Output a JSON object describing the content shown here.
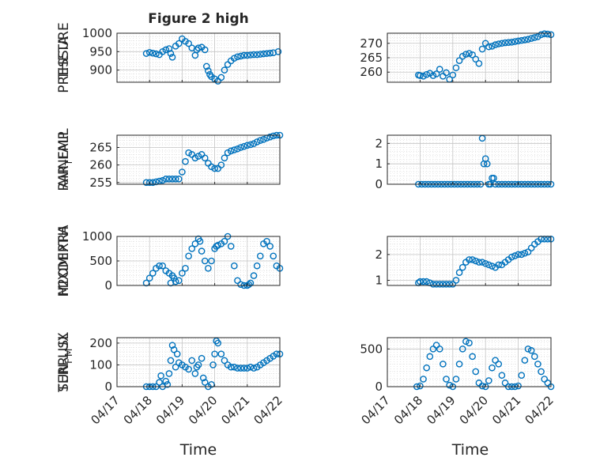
{
  "figure_title": "Figure 2 high",
  "x_tick_labels": [
    "04/17",
    "04/18",
    "04/19",
    "04/20",
    "04/21",
    "04/22"
  ],
  "xlabel": "Time",
  "marker_color": "#0072BD",
  "chart_data": [
    {
      "type": "scatter",
      "ylabel": "PRESSURE",
      "title": "Figure 2 high",
      "yticks": [
        900,
        950,
        1000
      ],
      "ylim": [
        867,
        1000
      ],
      "xlim": [
        0,
        5
      ],
      "xlabel": "",
      "x": [
        0.9,
        1.0,
        1.1,
        1.2,
        1.3,
        1.4,
        1.5,
        1.6,
        1.65,
        1.7,
        1.8,
        1.9,
        2.0,
        2.1,
        2.2,
        2.3,
        2.4,
        2.45,
        2.5,
        2.6,
        2.7,
        2.75,
        2.8,
        2.85,
        2.9,
        3.0,
        3.1,
        3.2,
        3.3,
        3.4,
        3.5,
        3.6,
        3.7,
        3.8,
        3.9,
        4.0,
        4.1,
        4.2,
        4.3,
        4.4,
        4.5,
        4.6,
        4.7,
        4.8,
        4.95
      ],
      "y": [
        945,
        948,
        946,
        944,
        942,
        950,
        955,
        958,
        945,
        935,
        965,
        972,
        985,
        978,
        972,
        960,
        940,
        955,
        960,
        962,
        955,
        910,
        898,
        888,
        882,
        876,
        870,
        880,
        900,
        915,
        925,
        932,
        936,
        938,
        940,
        940,
        941,
        942,
        942,
        943,
        944,
        945,
        946,
        947,
        950
      ]
    },
    {
      "type": "scatter",
      "ylabel": "THETA",
      "yticks": [
        260,
        265,
        270
      ],
      "ylim": [
        256.5,
        273.5
      ],
      "xlim": [
        0,
        5
      ],
      "x": [
        0.95,
        1.0,
        1.1,
        1.2,
        1.3,
        1.4,
        1.5,
        1.6,
        1.7,
        1.8,
        1.9,
        2.0,
        2.1,
        2.2,
        2.3,
        2.4,
        2.5,
        2.6,
        2.7,
        2.8,
        2.9,
        3.0,
        3.1,
        3.2,
        3.3,
        3.4,
        3.5,
        3.6,
        3.7,
        3.8,
        3.9,
        4.0,
        4.1,
        4.2,
        4.3,
        4.4,
        4.5,
        4.6,
        4.7,
        4.8,
        4.9,
        5.0
      ],
      "y": [
        259,
        258.8,
        258.6,
        259.2,
        259.6,
        258.8,
        259.4,
        261.0,
        258.6,
        259.8,
        257.5,
        259.0,
        261.5,
        264.0,
        265.5,
        266.2,
        266.5,
        266.0,
        264.5,
        263.0,
        268.0,
        270.0,
        268.8,
        269.0,
        269.5,
        269.8,
        270.0,
        270.2,
        270.3,
        270.4,
        270.6,
        270.8,
        271.0,
        271.2,
        271.4,
        271.7,
        272.0,
        272.3,
        273.0,
        273.3,
        273.2,
        273.0
      ]
    },
    {
      "type": "scatter",
      "ylabel": "AIR_TEMP",
      "ylabel_main": "AIR",
      "ylabel_sub": "T",
      "ylabel_rest": "EMP",
      "yticks": [
        255,
        260,
        265
      ],
      "ylim": [
        254.5,
        268.5
      ],
      "xlim": [
        0,
        5
      ],
      "x": [
        0.9,
        1.0,
        1.1,
        1.2,
        1.3,
        1.4,
        1.5,
        1.6,
        1.7,
        1.8,
        1.9,
        2.0,
        2.1,
        2.2,
        2.3,
        2.4,
        2.5,
        2.6,
        2.7,
        2.8,
        2.9,
        3.0,
        3.1,
        3.2,
        3.3,
        3.4,
        3.5,
        3.6,
        3.7,
        3.8,
        3.9,
        4.0,
        4.1,
        4.2,
        4.3,
        4.4,
        4.5,
        4.6,
        4.7,
        4.8,
        4.9,
        5.0
      ],
      "y": [
        255,
        255,
        255,
        255.2,
        255.4,
        255.6,
        256,
        256,
        256,
        256,
        256,
        258,
        261,
        263.5,
        263,
        262,
        262.5,
        263,
        262,
        260.5,
        259.5,
        259,
        259,
        260,
        262,
        263.5,
        264.0,
        264.3,
        264.6,
        265.0,
        265.3,
        265.6,
        265.8,
        266.1,
        266.6,
        267.0,
        267.3,
        267.7,
        268.0,
        268.3,
        268.5,
        268.5
      ]
    },
    {
      "type": "scatter",
      "ylabel": "RAINFALL",
      "yticks": [
        0,
        1,
        2
      ],
      "ylim": [
        0,
        2.4
      ],
      "xlim": [
        0,
        5
      ],
      "x": [
        0.95,
        1.05,
        1.15,
        1.25,
        1.35,
        1.45,
        1.55,
        1.65,
        1.75,
        1.85,
        1.95,
        2.05,
        2.15,
        2.25,
        2.35,
        2.45,
        2.55,
        2.65,
        2.75,
        2.85,
        2.9,
        2.95,
        3.0,
        3.05,
        3.1,
        3.15,
        3.2,
        3.25,
        3.3,
        3.4,
        3.5,
        3.6,
        3.7,
        3.8,
        3.9,
        4.0,
        4.1,
        4.2,
        4.3,
        4.4,
        4.5,
        4.6,
        4.7,
        4.8,
        4.9,
        5.0
      ],
      "y": [
        0,
        0,
        0,
        0,
        0,
        0,
        0,
        0,
        0,
        0,
        0,
        0,
        0,
        0,
        0,
        0,
        0,
        0,
        0,
        0,
        2.25,
        1.0,
        1.25,
        1.0,
        0,
        0,
        0.3,
        0.3,
        0,
        0,
        0,
        0,
        0,
        0,
        0,
        0,
        0,
        0,
        0,
        0,
        0,
        0,
        0,
        0,
        0,
        0
      ]
    },
    {
      "type": "scatter",
      "ylabel": "MIXDEPTH",
      "yticks": [
        0,
        500,
        1000
      ],
      "ylim": [
        0,
        1000
      ],
      "xlim": [
        0,
        5
      ],
      "x": [
        0.9,
        1.0,
        1.1,
        1.2,
        1.3,
        1.4,
        1.5,
        1.6,
        1.65,
        1.7,
        1.75,
        1.8,
        1.9,
        2.0,
        2.1,
        2.2,
        2.3,
        2.4,
        2.5,
        2.55,
        2.6,
        2.7,
        2.8,
        2.9,
        3.0,
        3.05,
        3.1,
        3.2,
        3.3,
        3.4,
        3.5,
        3.6,
        3.7,
        3.8,
        3.9,
        4.0,
        4.05,
        4.1,
        4.2,
        4.3,
        4.4,
        4.5,
        4.6,
        4.7,
        4.8,
        4.9,
        5.0
      ],
      "y": [
        50,
        150,
        250,
        350,
        400,
        400,
        300,
        250,
        50,
        200,
        150,
        80,
        100,
        250,
        350,
        600,
        750,
        850,
        950,
        900,
        700,
        500,
        350,
        500,
        750,
        800,
        820,
        850,
        900,
        1000,
        800,
        400,
        100,
        20,
        0,
        0,
        20,
        50,
        200,
        400,
        600,
        850,
        900,
        800,
        600,
        400,
        350
      ]
    },
    {
      "type": "scatter",
      "ylabel": "H2OMIXRA",
      "yticks": [
        1,
        2
      ],
      "ylim": [
        0.8,
        2.7
      ],
      "xlim": [
        0,
        5
      ],
      "x": [
        0.95,
        1.0,
        1.1,
        1.2,
        1.3,
        1.4,
        1.5,
        1.6,
        1.7,
        1.8,
        1.9,
        2.0,
        2.1,
        2.2,
        2.3,
        2.4,
        2.5,
        2.6,
        2.7,
        2.8,
        2.9,
        3.0,
        3.1,
        3.2,
        3.3,
        3.4,
        3.5,
        3.6,
        3.7,
        3.8,
        3.9,
        4.0,
        4.1,
        4.2,
        4.3,
        4.4,
        4.5,
        4.6,
        4.7,
        4.8,
        4.9,
        5.0
      ],
      "y": [
        0.9,
        0.95,
        0.95,
        0.95,
        0.9,
        0.85,
        0.85,
        0.85,
        0.85,
        0.85,
        0.85,
        0.85,
        1.0,
        1.3,
        1.5,
        1.7,
        1.8,
        1.8,
        1.75,
        1.7,
        1.7,
        1.65,
        1.6,
        1.55,
        1.5,
        1.6,
        1.6,
        1.7,
        1.8,
        1.9,
        1.95,
        2.0,
        2.0,
        2.05,
        2.1,
        2.25,
        2.4,
        2.5,
        2.6,
        2.6,
        2.6,
        2.6
      ]
    },
    {
      "type": "scatter",
      "ylabel": "TERR_MSL",
      "ylabel_main": "TERR",
      "ylabel_sub": "M",
      "ylabel_rest": "SL",
      "yticks": [
        0,
        100,
        200
      ],
      "ylim": [
        0,
        225
      ],
      "xlim": [
        0,
        5
      ],
      "x": [
        0.9,
        1.0,
        1.1,
        1.2,
        1.3,
        1.35,
        1.4,
        1.5,
        1.55,
        1.6,
        1.65,
        1.7,
        1.75,
        1.8,
        1.85,
        1.9,
        2.0,
        2.1,
        2.2,
        2.3,
        2.4,
        2.45,
        2.5,
        2.6,
        2.65,
        2.7,
        2.8,
        2.9,
        2.95,
        3.0,
        3.05,
        3.1,
        3.2,
        3.3,
        3.4,
        3.5,
        3.6,
        3.7,
        3.8,
        3.9,
        4.0,
        4.1,
        4.2,
        4.3,
        4.4,
        4.5,
        4.6,
        4.7,
        4.8,
        4.9,
        5.0
      ],
      "y": [
        0,
        0,
        0,
        0,
        20,
        50,
        0,
        25,
        10,
        60,
        120,
        190,
        170,
        90,
        150,
        110,
        100,
        90,
        80,
        120,
        60,
        90,
        100,
        130,
        40,
        20,
        0,
        10,
        100,
        150,
        210,
        200,
        150,
        120,
        100,
        90,
        90,
        85,
        85,
        85,
        85,
        90,
        85,
        90,
        100,
        110,
        120,
        130,
        140,
        150,
        150
      ]
    },
    {
      "type": "scatter",
      "ylabel": "SUN_FLUX",
      "ylabel_main": "SUN",
      "ylabel_sub": "F",
      "ylabel_rest": "LUX",
      "yticks": [
        0,
        500
      ],
      "ylim": [
        0,
        650
      ],
      "xlim": [
        0,
        5
      ],
      "x": [
        0.9,
        1.0,
        1.1,
        1.2,
        1.3,
        1.4,
        1.5,
        1.6,
        1.7,
        1.8,
        1.9,
        2.0,
        2.1,
        2.2,
        2.3,
        2.4,
        2.5,
        2.6,
        2.7,
        2.8,
        2.9,
        3.0,
        3.1,
        3.2,
        3.3,
        3.4,
        3.5,
        3.6,
        3.7,
        3.8,
        3.9,
        4.0,
        4.1,
        4.2,
        4.3,
        4.4,
        4.5,
        4.6,
        4.7,
        4.8,
        4.9,
        5.0
      ],
      "y": [
        0,
        10,
        100,
        250,
        400,
        500,
        550,
        500,
        300,
        100,
        20,
        0,
        100,
        300,
        500,
        600,
        580,
        400,
        200,
        50,
        10,
        0,
        80,
        250,
        350,
        300,
        150,
        50,
        0,
        0,
        0,
        10,
        150,
        350,
        500,
        480,
        400,
        300,
        200,
        100,
        50,
        0
      ]
    }
  ]
}
